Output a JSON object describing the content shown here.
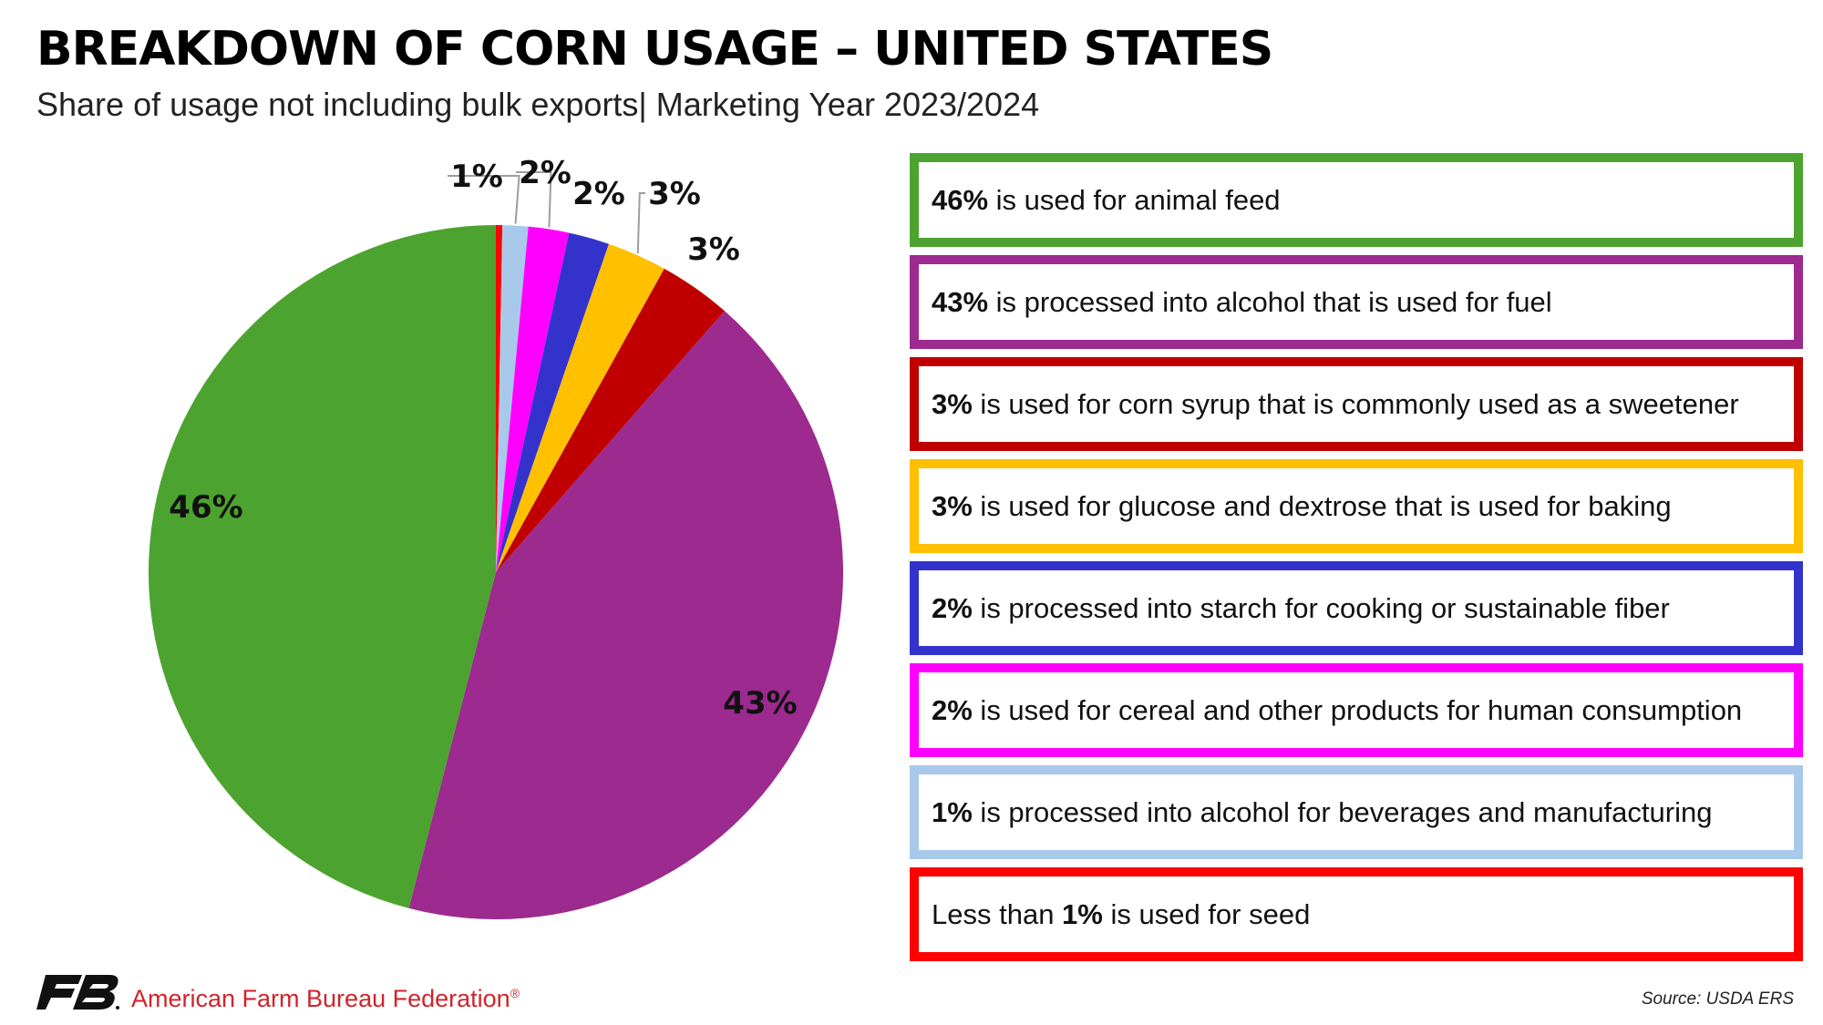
{
  "header": {
    "title": "BREAKDOWN OF CORN USAGE – UNITED STATES",
    "subtitle": "Share of usage not including bulk exports| Marketing Year 2023/2024"
  },
  "chart_data": {
    "type": "pie",
    "title": "BREAKDOWN OF CORN USAGE – UNITED STATES",
    "subtitle": "Share of usage not including bulk exports| Marketing Year 2023/2024",
    "slices": [
      {
        "pct_label": "46%",
        "text": " is used for animal feed",
        "value": 46.2,
        "color": "#4da32f"
      },
      {
        "pct_label": "43%",
        "text": " is processed into alcohol that is used for fuel",
        "value": 42.8,
        "color": "#9c2a8f"
      },
      {
        "pct_label": "3%",
        "text": " is used for corn syrup that is commonly used as a sweetener",
        "value": 3.4,
        "color": "#c00000"
      },
      {
        "pct_label": "3%",
        "text": " is used for glucose and dextrose that is used for baking",
        "value": 2.8,
        "color": "#ffc000"
      },
      {
        "pct_label": "2%",
        "text": " is processed into starch for cooking or sustainable fiber",
        "value": 1.9,
        "color": "#3333cc"
      },
      {
        "pct_label": "2%",
        "text": " is used for cereal and other products for human consumption",
        "value": 1.9,
        "color": "#ff00ff"
      },
      {
        "pct_label": "1%",
        "text": " is processed into alcohol for beverages and manufacturing",
        "value": 1.2,
        "color": "#a9c9ea"
      },
      {
        "pct_label": "1%",
        "prefix": "Less than ",
        "text": " is used for seed",
        "value": 0.3,
        "color": "#ff0000"
      }
    ]
  },
  "footer": {
    "organization": "American Farm Bureau Federation",
    "registered_mark": "®",
    "source": "Source: USDA ERS"
  }
}
